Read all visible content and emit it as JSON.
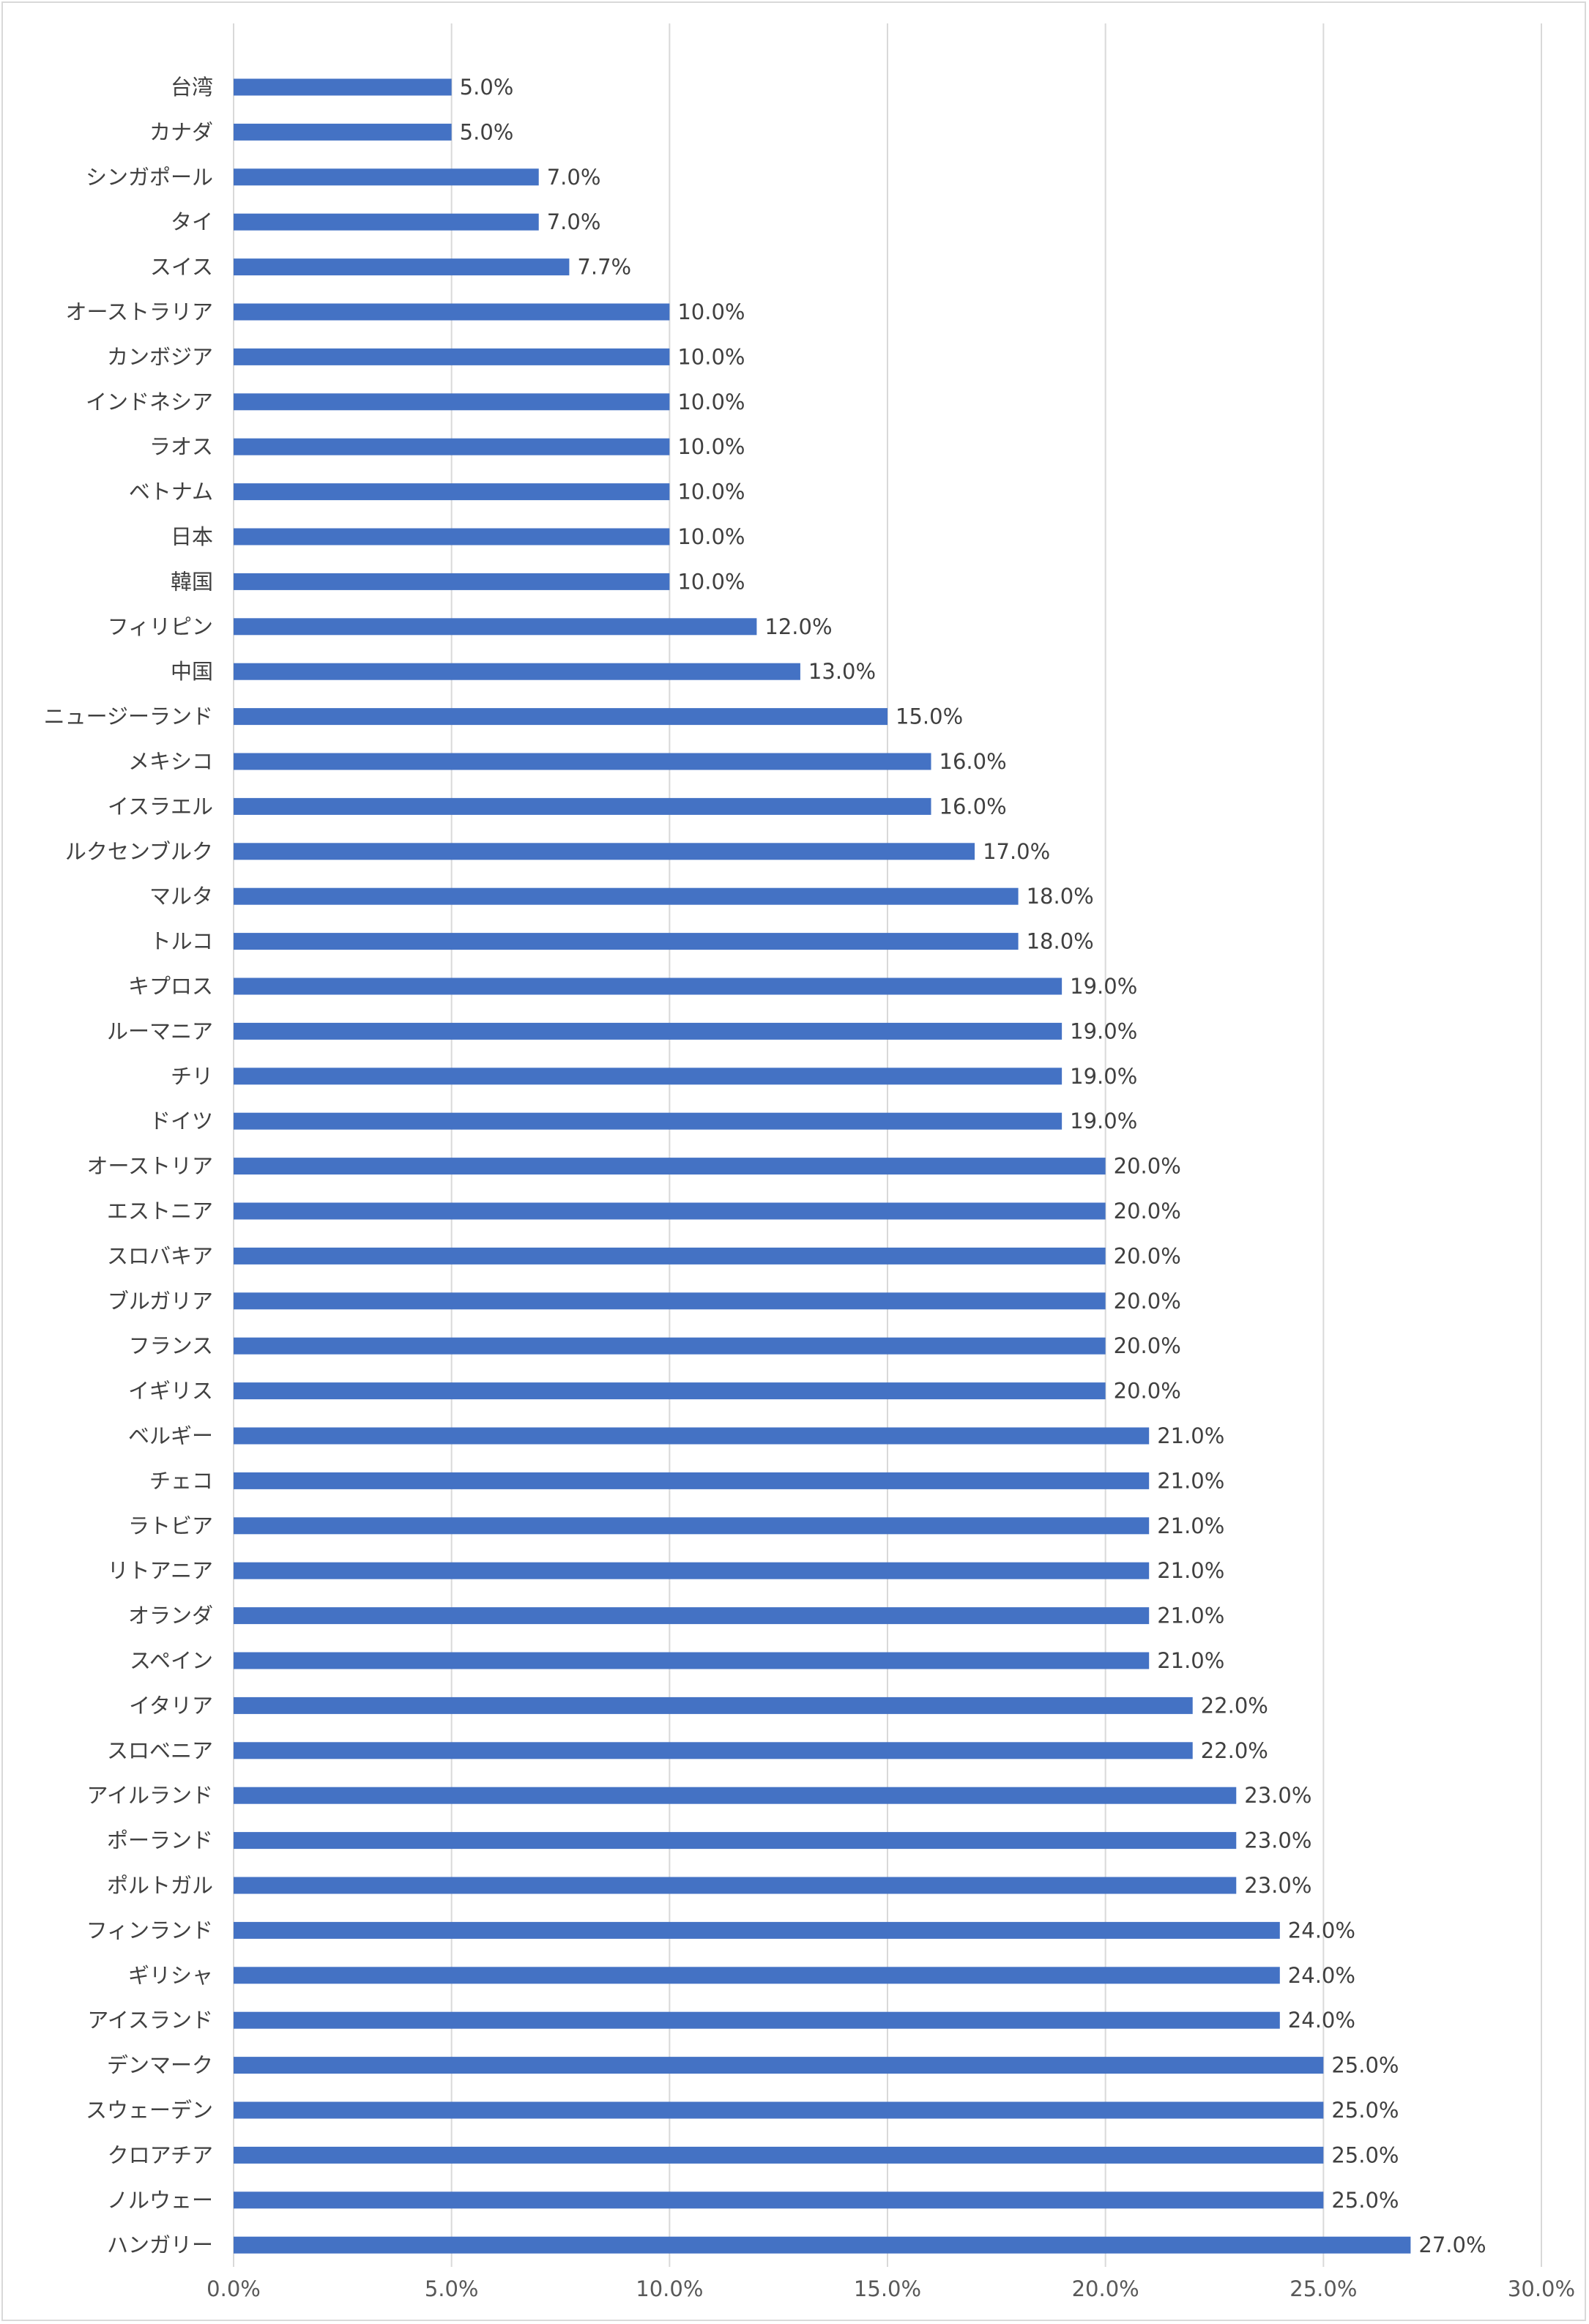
{
  "chart_data": {
    "type": "bar",
    "orientation": "horizontal",
    "title": "",
    "xlabel": "",
    "ylabel": "",
    "xlim": [
      0,
      30
    ],
    "x_ticks": [
      "0.0%",
      "5.0%",
      "10.0%",
      "15.0%",
      "20.0%",
      "25.0%",
      "30.0%"
    ],
    "grid": "vertical",
    "legend": "none",
    "bar_color": "#4472c4",
    "categories": [
      "台湾",
      "カナダ",
      "シンガポール",
      "タイ",
      "スイス",
      "オーストラリア",
      "カンボジア",
      "インドネシア",
      "ラオス",
      "ベトナム",
      "日本",
      "韓国",
      "フィリピン",
      "中国",
      "ニュージーランド",
      "メキシコ",
      "イスラエル",
      "ルクセンブルク",
      "マルタ",
      "トルコ",
      "キプロス",
      "ルーマニア",
      "チリ",
      "ドイツ",
      "オーストリア",
      "エストニア",
      "スロバキア",
      "ブルガリア",
      "フランス",
      "イギリス",
      "ベルギー",
      "チェコ",
      "ラトビア",
      "リトアニア",
      "オランダ",
      "スペイン",
      "イタリア",
      "スロベニア",
      "アイルランド",
      "ポーランド",
      "ポルトガル",
      "フィンランド",
      "ギリシャ",
      "アイスランド",
      "デンマーク",
      "スウェーデン",
      "クロアチア",
      "ノルウェー",
      "ハンガリー"
    ],
    "values": [
      5.0,
      5.0,
      7.0,
      7.0,
      7.7,
      10.0,
      10.0,
      10.0,
      10.0,
      10.0,
      10.0,
      10.0,
      12.0,
      13.0,
      15.0,
      16.0,
      16.0,
      17.0,
      18.0,
      18.0,
      19.0,
      19.0,
      19.0,
      19.0,
      20.0,
      20.0,
      20.0,
      20.0,
      20.0,
      20.0,
      21.0,
      21.0,
      21.0,
      21.0,
      21.0,
      21.0,
      22.0,
      22.0,
      23.0,
      23.0,
      23.0,
      24.0,
      24.0,
      24.0,
      25.0,
      25.0,
      25.0,
      25.0,
      27.0
    ],
    "value_labels": [
      "5.0%",
      "5.0%",
      "7.0%",
      "7.0%",
      "7.7%",
      "10.0%",
      "10.0%",
      "10.0%",
      "10.0%",
      "10.0%",
      "10.0%",
      "10.0%",
      "12.0%",
      "13.0%",
      "15.0%",
      "16.0%",
      "16.0%",
      "17.0%",
      "18.0%",
      "18.0%",
      "19.0%",
      "19.0%",
      "19.0%",
      "19.0%",
      "20.0%",
      "20.0%",
      "20.0%",
      "20.0%",
      "20.0%",
      "20.0%",
      "21.0%",
      "21.0%",
      "21.0%",
      "21.0%",
      "21.0%",
      "21.0%",
      "22.0%",
      "22.0%",
      "23.0%",
      "23.0%",
      "23.0%",
      "24.0%",
      "24.0%",
      "24.0%",
      "25.0%",
      "25.0%",
      "25.0%",
      "25.0%",
      "27.0%"
    ]
  }
}
